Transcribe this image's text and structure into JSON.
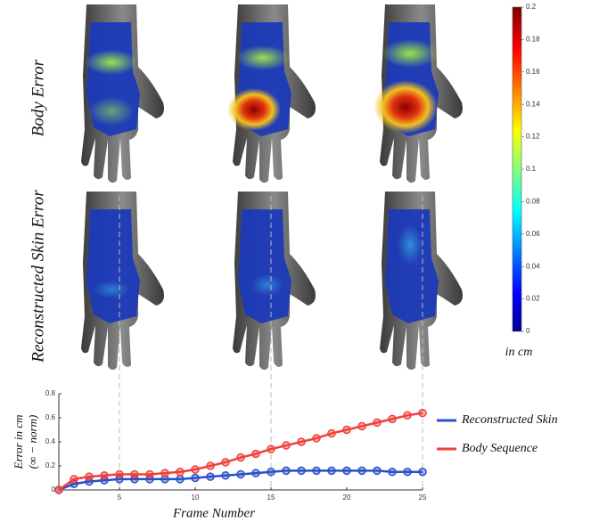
{
  "row_labels": [
    "Body Error",
    "Reconstructed Skin Error"
  ],
  "colorbar": {
    "lim": [
      0,
      0.2
    ],
    "ticks": [
      0,
      0.02,
      0.04,
      0.06,
      0.08,
      0.1,
      0.12,
      0.14,
      0.16,
      0.18,
      0.2
    ],
    "label": "in cm"
  },
  "chart_data": {
    "type": "line",
    "x": [
      1,
      2,
      3,
      4,
      5,
      6,
      7,
      8,
      9,
      10,
      11,
      12,
      13,
      14,
      15,
      16,
      17,
      18,
      19,
      20,
      21,
      22,
      23,
      24,
      25
    ],
    "series": [
      {
        "name": "Reconstructed Skin",
        "color": "#2a4fc9",
        "values": [
          0.0,
          0.05,
          0.07,
          0.08,
          0.09,
          0.09,
          0.09,
          0.09,
          0.09,
          0.1,
          0.11,
          0.12,
          0.13,
          0.14,
          0.15,
          0.16,
          0.16,
          0.16,
          0.16,
          0.16,
          0.16,
          0.16,
          0.15,
          0.15,
          0.15
        ]
      },
      {
        "name": "Body Sequence",
        "color": "#f0403a",
        "values": [
          0.0,
          0.09,
          0.11,
          0.12,
          0.13,
          0.13,
          0.13,
          0.14,
          0.15,
          0.17,
          0.2,
          0.23,
          0.27,
          0.3,
          0.34,
          0.37,
          0.4,
          0.43,
          0.47,
          0.5,
          0.53,
          0.56,
          0.59,
          0.62,
          0.64
        ]
      }
    ],
    "xlim": [
      1,
      25
    ],
    "xticks": [
      5,
      10,
      15,
      20,
      25
    ],
    "ylim": [
      0,
      0.8
    ],
    "yticks": [
      0,
      0.2,
      0.4,
      0.6,
      0.8
    ],
    "highlight_frames": [
      5,
      15,
      25
    ],
    "x_label": "Frame Number",
    "y_label": "Error in cm",
    "y_label_2": "(∞ − norm)"
  }
}
